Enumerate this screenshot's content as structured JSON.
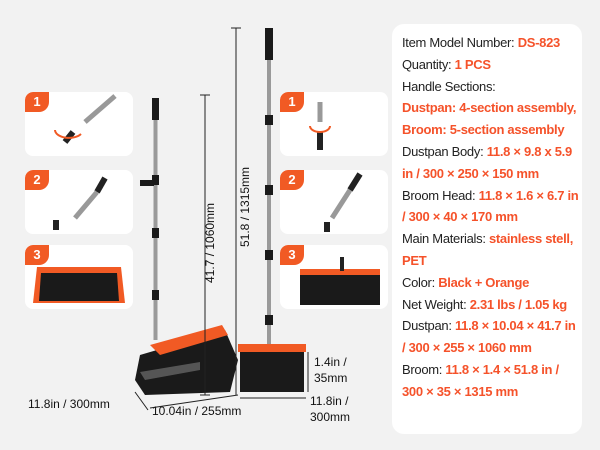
{
  "specs": [
    {
      "label": "Item Model Number: ",
      "value": "DS-823"
    },
    {
      "label": "Quantity: ",
      "value": "1 PCS"
    },
    {
      "label": "Handle Sections:",
      "value": ""
    },
    {
      "label": "",
      "value": "Dustpan: 4-section assembly, Broom: 5-section assembly"
    },
    {
      "label": "Dustpan Body: ",
      "value": "11.8 × 9.8 x 5.9 in / 300 × 250 × 150 mm"
    },
    {
      "label": "Broom Head: ",
      "value": "11.8 × 1.6 × 6.7 in / 300 × 40 × 170 mm"
    },
    {
      "label": "Main Materials: ",
      "value": "stainless stell, PET"
    },
    {
      "label": "Color: ",
      "value": "Black + Orange"
    },
    {
      "label": "Net Weight: ",
      "value": "2.31 lbs / 1.05 kg"
    },
    {
      "label": "Dustpan: ",
      "value": "11.8 × 10.04 × 41.7 in / 300 × 255 × 1060 mm"
    },
    {
      "label": "Broom: ",
      "value": "11.8 × 1.4 × 51.8 in / 300 × 35 × 1315 mm"
    }
  ],
  "steps": [
    "1",
    "2",
    "3"
  ],
  "dimensions": {
    "dustpan_height": "41.7 / 1060mm",
    "broom_height": "51.8 / 1315mm",
    "dustpan_width": "11.8in / 300mm",
    "dustpan_depth": "10.04in / 255mm",
    "broom_thickness_1": "1.4in /",
    "broom_thickness_2": "35mm",
    "broom_width_1": "11.8in /",
    "broom_width_2": "300mm"
  },
  "colors": {
    "accent": "#f5522a",
    "orange": "#f15a24",
    "black": "#1a1a1a"
  }
}
